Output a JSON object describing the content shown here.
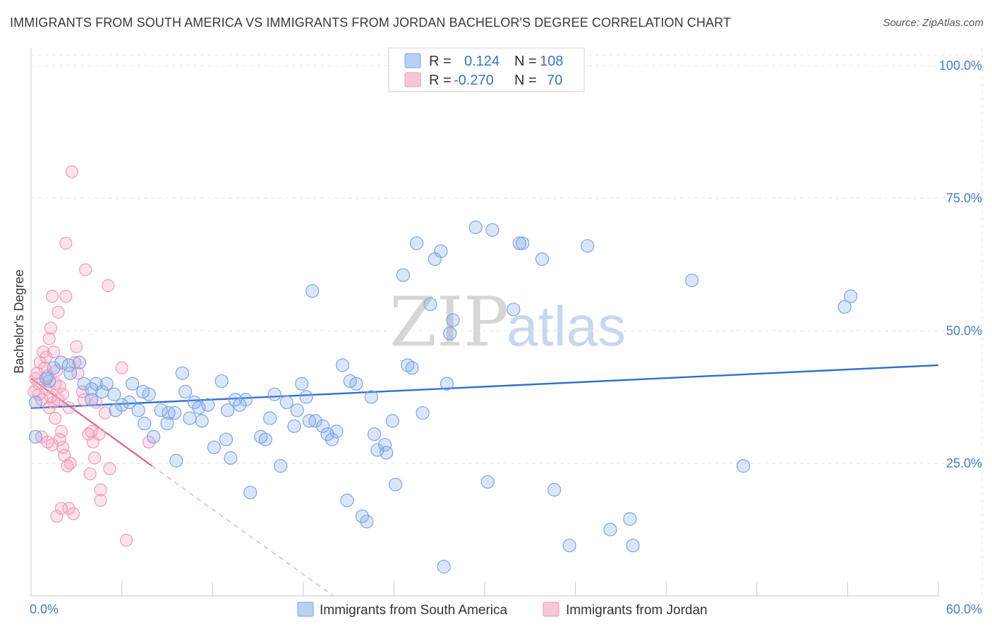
{
  "title": "IMMIGRANTS FROM SOUTH AMERICA VS IMMIGRANTS FROM JORDAN BACHELOR'S DEGREE CORRELATION CHART",
  "source": "Source: ZipAtlas.com",
  "watermark": {
    "zip": "ZIP",
    "atlas": "atlas"
  },
  "legend_top": {
    "r_label": "R =",
    "n_label": "N =",
    "rows": [
      {
        "r": "0.124",
        "n": "108",
        "color": "#7aa6e6"
      },
      {
        "r": "-0.270",
        "n": "70",
        "color": "#f29bb8"
      }
    ]
  },
  "legend_bottom": [
    {
      "label": "Immigrants from South America",
      "color": "#7aa6e6"
    },
    {
      "label": "Immigrants from Jordan",
      "color": "#f29bb8"
    }
  ],
  "chart_data": {
    "type": "scatter",
    "title": "IMMIGRANTS FROM SOUTH AMERICA VS IMMIGRANTS FROM JORDAN BACHELOR'S DEGREE CORRELATION CHART",
    "xlabel": "",
    "ylabel": "Bachelor's Degree",
    "xlim": [
      0,
      60
    ],
    "ylim": [
      0,
      102
    ],
    "x_tick_labels": [
      "0.0%",
      "60.0%"
    ],
    "y_ticks": [
      25,
      50,
      75,
      100
    ],
    "y_tick_labels": [
      "25.0%",
      "50.0%",
      "75.0%",
      "100.0%"
    ],
    "grid": true,
    "colors": {
      "south_america": "#7aa6e6",
      "jordan": "#f29bb8",
      "sa_line": "#2f6fcc",
      "jo_line": "#e0608e"
    },
    "series": [
      {
        "name": "Immigrants from South America",
        "trend": {
          "x": [
            0,
            60
          ],
          "y": [
            35.4,
            43.5
          ]
        },
        "points": [
          [
            0.3,
            36.5
          ],
          [
            0.3,
            30
          ],
          [
            1,
            41
          ],
          [
            1.2,
            40.5
          ],
          [
            1.5,
            43
          ],
          [
            2,
            44
          ],
          [
            2.5,
            43.5
          ],
          [
            2.6,
            42
          ],
          [
            3.2,
            44
          ],
          [
            3.5,
            40
          ],
          [
            4,
            39
          ],
          [
            4,
            37
          ],
          [
            4.3,
            40
          ],
          [
            4.7,
            38.5
          ],
          [
            5,
            40
          ],
          [
            5.5,
            38
          ],
          [
            5.6,
            35
          ],
          [
            6,
            36
          ],
          [
            6.5,
            36.5
          ],
          [
            6.7,
            40
          ],
          [
            7.1,
            35
          ],
          [
            7.4,
            38.5
          ],
          [
            7.5,
            32.5
          ],
          [
            7.8,
            38
          ],
          [
            8.1,
            30
          ],
          [
            8.6,
            35
          ],
          [
            9,
            32.5
          ],
          [
            9.1,
            34.5
          ],
          [
            9.5,
            34.5
          ],
          [
            9.6,
            25.5
          ],
          [
            10,
            42
          ],
          [
            10.2,
            38.5
          ],
          [
            10.5,
            33.5
          ],
          [
            10.8,
            36.5
          ],
          [
            11.1,
            35.5
          ],
          [
            11.3,
            33
          ],
          [
            11.7,
            36
          ],
          [
            12.1,
            28
          ],
          [
            12.6,
            40.5
          ],
          [
            12.9,
            29.5
          ],
          [
            13,
            35
          ],
          [
            13.2,
            26
          ],
          [
            13.5,
            37
          ],
          [
            13.8,
            36
          ],
          [
            14.2,
            37
          ],
          [
            14.5,
            19.5
          ],
          [
            15.2,
            30
          ],
          [
            15.5,
            29.5
          ],
          [
            15.8,
            33.5
          ],
          [
            16.1,
            38
          ],
          [
            16.5,
            24.5
          ],
          [
            16.9,
            36.5
          ],
          [
            17.4,
            32
          ],
          [
            17.6,
            35
          ],
          [
            17.9,
            40
          ],
          [
            18.2,
            37.5
          ],
          [
            18.4,
            33
          ],
          [
            18.6,
            57.5
          ],
          [
            18.8,
            33
          ],
          [
            19.3,
            32
          ],
          [
            19.6,
            30.5
          ],
          [
            19.9,
            29.5
          ],
          [
            20.2,
            31
          ],
          [
            20.6,
            43.5
          ],
          [
            20.9,
            18
          ],
          [
            21.1,
            40.5
          ],
          [
            21.5,
            40
          ],
          [
            21.9,
            15
          ],
          [
            22.2,
            14
          ],
          [
            22.5,
            37.5
          ],
          [
            22.7,
            30.5
          ],
          [
            22.9,
            27.5
          ],
          [
            23.4,
            28.5
          ],
          [
            23.5,
            27
          ],
          [
            23.9,
            33
          ],
          [
            24.1,
            21
          ],
          [
            24.6,
            60.5
          ],
          [
            24.9,
            43.5
          ],
          [
            25.2,
            43
          ],
          [
            25.5,
            66.5
          ],
          [
            25.9,
            34.5
          ],
          [
            26.4,
            55
          ],
          [
            26.7,
            63.5
          ],
          [
            27.1,
            65
          ],
          [
            27.3,
            5.5
          ],
          [
            27.5,
            40
          ],
          [
            27.7,
            49.5
          ],
          [
            27.9,
            52
          ],
          [
            29.4,
            69.5
          ],
          [
            30.2,
            21.5
          ],
          [
            30.5,
            69
          ],
          [
            31.9,
            54
          ],
          [
            32.3,
            66.5
          ],
          [
            32.5,
            66.5
          ],
          [
            33.8,
            63.5
          ],
          [
            34.6,
            20
          ],
          [
            35.6,
            9.5
          ],
          [
            36.8,
            66
          ],
          [
            38.3,
            12.5
          ],
          [
            39.6,
            14.5
          ],
          [
            39.8,
            9.5
          ],
          [
            43.7,
            59.5
          ],
          [
            47.1,
            24.5
          ],
          [
            53.8,
            54.5
          ],
          [
            54.2,
            56.5
          ]
        ]
      },
      {
        "name": "Immigrants from Jordan",
        "trend": {
          "x": [
            0,
            8
          ],
          "y": [
            41,
            24.5
          ]
        },
        "trend_extension": {
          "x": [
            8,
            20
          ],
          "y": [
            24.5,
            0
          ]
        },
        "points": [
          [
            0.2,
            38.5
          ],
          [
            0.3,
            41
          ],
          [
            0.4,
            42
          ],
          [
            0.5,
            40
          ],
          [
            0.5,
            38
          ],
          [
            0.6,
            44
          ],
          [
            0.7,
            37
          ],
          [
            0.7,
            30
          ],
          [
            0.8,
            46
          ],
          [
            0.9,
            43
          ],
          [
            1,
            45
          ],
          [
            1,
            39
          ],
          [
            1.1,
            41.5
          ],
          [
            1.1,
            29
          ],
          [
            1.2,
            48.5
          ],
          [
            1.2,
            35.5
          ],
          [
            1.3,
            50.5
          ],
          [
            1.3,
            37.5
          ],
          [
            1.4,
            56.5
          ],
          [
            1.4,
            28.5
          ],
          [
            1.5,
            46
          ],
          [
            1.5,
            36.5
          ],
          [
            1.6,
            40
          ],
          [
            1.6,
            33.5
          ],
          [
            1.7,
            42.5
          ],
          [
            1.7,
            15
          ],
          [
            1.8,
            53.5
          ],
          [
            1.8,
            37
          ],
          [
            1.9,
            39.5
          ],
          [
            1.9,
            29.5
          ],
          [
            2,
            31
          ],
          [
            2,
            16.5
          ],
          [
            2.1,
            38
          ],
          [
            2.1,
            28
          ],
          [
            2.2,
            26.5
          ],
          [
            2.3,
            66.5
          ],
          [
            2.3,
            56.5
          ],
          [
            2.4,
            24.5
          ],
          [
            2.5,
            35.5
          ],
          [
            2.5,
            16.5
          ],
          [
            2.6,
            25
          ],
          [
            2.7,
            80
          ],
          [
            2.8,
            15.5
          ],
          [
            2.9,
            44
          ],
          [
            3,
            47
          ],
          [
            3.1,
            42
          ],
          [
            3.4,
            38.5
          ],
          [
            3.5,
            37
          ],
          [
            3.6,
            61.5
          ],
          [
            3.8,
            30.5
          ],
          [
            3.9,
            23
          ],
          [
            4,
            31
          ],
          [
            4.1,
            29
          ],
          [
            4.2,
            26
          ],
          [
            4.3,
            36.5
          ],
          [
            4.5,
            30.5
          ],
          [
            4.6,
            20
          ],
          [
            4.6,
            18
          ],
          [
            4.9,
            34.5
          ],
          [
            5.1,
            58.5
          ],
          [
            5.2,
            24
          ],
          [
            6,
            43
          ],
          [
            6.3,
            10.5
          ],
          [
            7.8,
            29
          ]
        ]
      }
    ]
  }
}
